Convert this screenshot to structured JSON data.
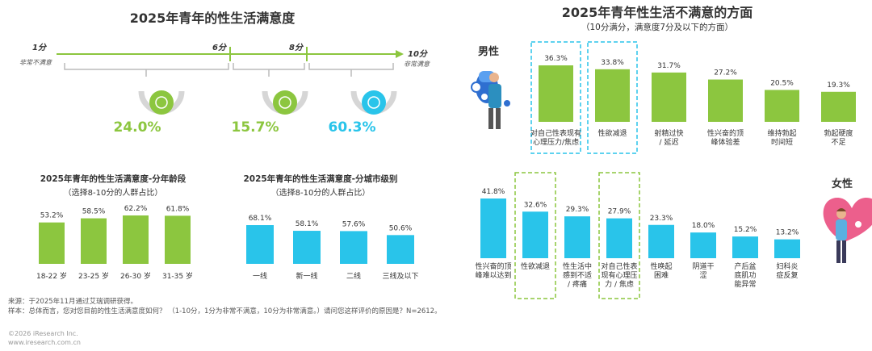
{
  "left": {
    "title": "2025年青年的性生活满意度",
    "scale": {
      "start_label": "1分",
      "start_sub": "非常不满意",
      "mid1_label": "6分",
      "mid2_label": "8分",
      "end_label": "10分",
      "end_sub": "非常满意"
    },
    "segments": [
      {
        "value": "24.0%",
        "color": "#8cc63f"
      },
      {
        "value": "15.7%",
        "color": "#8cc63f"
      },
      {
        "value": "60.3%",
        "color": "#29c4ea"
      }
    ]
  },
  "chart_age": {
    "title": "2025年青年的性生活满意度-分年龄段",
    "subtitle": "（选择8-10分的人群占比）"
  },
  "chart_city": {
    "title": "2025年青年的性生活满意度-分城市级别",
    "subtitle": "（选择8-10分的人群占比）"
  },
  "right": {
    "title": "2025年青年性生活不满意的方面",
    "subtitle": "（10分满分，满意度7分及以下的方面）",
    "male_label": "男性",
    "female_label": "女性"
  },
  "footer": {
    "source": "来源：于2025年11月通过艾瑞调研获得。",
    "sample": "样本：总体而言，您对您目前的性生活满意度如何？ （1-10分，1分为非常不满意，10分为非常满意。）请问您这样评价的原因是？N=2612。",
    "copyright": "©2026 iResearch Inc.",
    "website": "www.iresearch.com.cn"
  },
  "chart_data": [
    {
      "type": "bar",
      "title": "2025年青年的性生活满意度-分年龄段",
      "categories": [
        "18-22 岁",
        "23-25 岁",
        "26-30 岁",
        "31-35 岁"
      ],
      "values": [
        53.2,
        58.5,
        62.2,
        61.8
      ],
      "value_labels": [
        "53.2%",
        "58.5%",
        "62.2%",
        "61.8%"
      ],
      "color": "#8cc63f"
    },
    {
      "type": "bar",
      "title": "2025年青年的性生活满意度-分城市级别",
      "categories": [
        "一线",
        "新一线",
        "二线",
        "三线及以下"
      ],
      "values": [
        68.1,
        58.1,
        57.6,
        50.6
      ],
      "value_labels": [
        "68.1%",
        "58.1%",
        "57.6%",
        "50.6%"
      ],
      "color": "#29c4ea"
    },
    {
      "type": "bar",
      "title": "2025年青年性生活不满意的方面",
      "series_label": "男性",
      "categories": [
        "对自己性表现有心理压力/焦虑",
        "性欲减退",
        "射精过快/延迟",
        "性兴奋的顶峰体验差",
        "维持勃起时间短",
        "勃起硬度不足"
      ],
      "category_lines": [
        [
          "对自己性表现有",
          "心理压力/焦虑"
        ],
        [
          "性欲减退"
        ],
        [
          "射精过快",
          "/ 延迟"
        ],
        [
          "性兴奋的顶",
          "峰体验差"
        ],
        [
          "维持勃起",
          "时间短"
        ],
        [
          "勃起硬度",
          "不足"
        ]
      ],
      "values": [
        36.3,
        33.8,
        31.7,
        27.2,
        20.5,
        19.3
      ],
      "value_labels": [
        "36.3%",
        "33.8%",
        "31.7%",
        "27.2%",
        "20.5%",
        "19.3%"
      ],
      "highlighted": [
        0,
        1
      ],
      "color": "#8cc63f"
    },
    {
      "type": "bar",
      "title": "2025年青年性生活不满意的方面",
      "series_label": "女性",
      "categories": [
        "性兴奋的顶峰难以达到",
        "性欲减退",
        "性生活中感到不适/疼痛",
        "对自己性表现有心理压力/焦虑",
        "性唤起困难",
        "阴道干涩",
        "产后盆底肌功能异常",
        "妇科炎症反复"
      ],
      "category_lines": [
        [
          "性兴奋的顶",
          "峰难以达到"
        ],
        [
          "性欲减退"
        ],
        [
          "性生活中",
          "感到不适",
          "/ 疼痛"
        ],
        [
          "对自己性表",
          "现有心理压",
          "力 / 焦虑"
        ],
        [
          "性唤起",
          "困难"
        ],
        [
          "阴道干",
          "涩"
        ],
        [
          "产后盆",
          "底肌功",
          "能异常"
        ],
        [
          "妇科炎",
          "症反复"
        ]
      ],
      "values": [
        41.8,
        32.6,
        29.3,
        27.9,
        23.3,
        18.0,
        15.2,
        13.2
      ],
      "value_labels": [
        "41.8%",
        "32.6%",
        "29.3%",
        "27.9%",
        "23.3%",
        "18.0%",
        "15.2%",
        "13.2%"
      ],
      "highlighted": [
        1,
        3
      ],
      "color": "#29c4ea"
    }
  ]
}
